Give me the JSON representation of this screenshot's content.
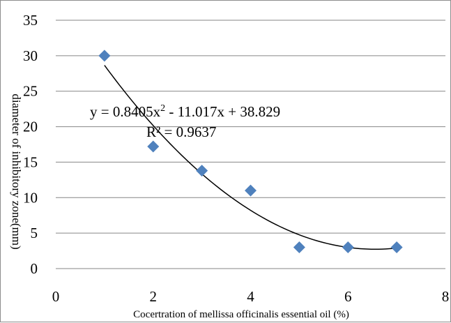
{
  "chart_data": {
    "type": "scatter",
    "xlabel": "Cocertration of mellissa officinalis essential oil (%)",
    "ylabel": "diameter of inhibitory zone(mm)",
    "xlim": [
      0,
      8
    ],
    "ylim": [
      0,
      35
    ],
    "x_ticks": [
      0,
      2,
      4,
      6,
      8
    ],
    "y_ticks": [
      0,
      5,
      10,
      15,
      20,
      25,
      30,
      35
    ],
    "grid": "horizontal",
    "marker": "diamond",
    "marker_color": "#4f81bd",
    "series": [
      {
        "x": [
          1,
          2,
          3,
          4,
          5,
          6,
          7
        ],
        "y": [
          30,
          17.2,
          13.8,
          11,
          3,
          3,
          3
        ]
      }
    ],
    "trendline": {
      "type": "polynomial",
      "order": 2,
      "coefficients": [
        0.8405,
        -11.017,
        38.829
      ],
      "equation_prefix": "y = 0.8405x",
      "equation_exponent": "2",
      "equation_suffix": " - 11.017x + 38.829",
      "r_squared": "R² = 0.9637",
      "color": "#000000"
    }
  }
}
